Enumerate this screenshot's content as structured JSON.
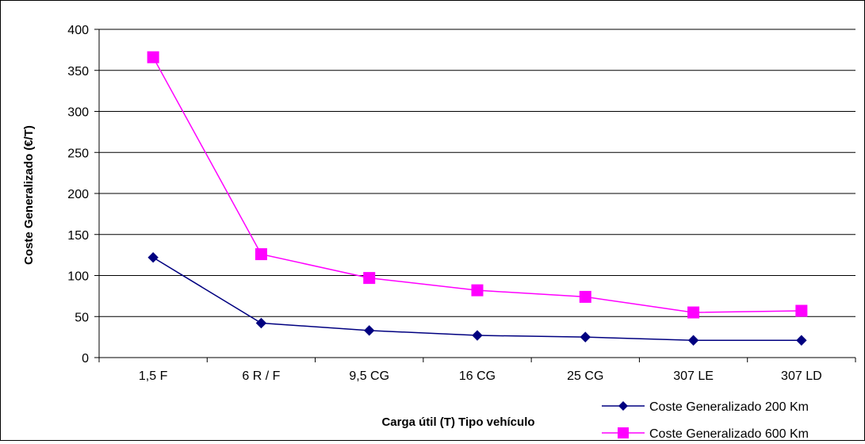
{
  "chart_data": {
    "type": "line",
    "title": "",
    "xlabel": "Carga útil (T) Tipo vehículo",
    "ylabel": "Coste Generalizado (€/T)",
    "categories": [
      "1,5 F",
      "6 R / F",
      "9,5 CG",
      "16 CG",
      "25 CG",
      "307 LE",
      "307 LD"
    ],
    "ylim": [
      0,
      400
    ],
    "yticks": [
      0,
      50,
      100,
      150,
      200,
      250,
      300,
      350,
      400
    ],
    "grid": true,
    "legend_position": "bottom-right",
    "series": [
      {
        "name": "Coste Generalizado 200 Km",
        "color": "#000080",
        "marker": "diamond",
        "values": [
          122,
          42,
          33,
          27,
          25,
          21,
          21
        ]
      },
      {
        "name": "Coste Generalizado 600 Km",
        "color": "#ff00ff",
        "marker": "square",
        "values": [
          366,
          126,
          97,
          82,
          74,
          55,
          57
        ]
      }
    ]
  }
}
